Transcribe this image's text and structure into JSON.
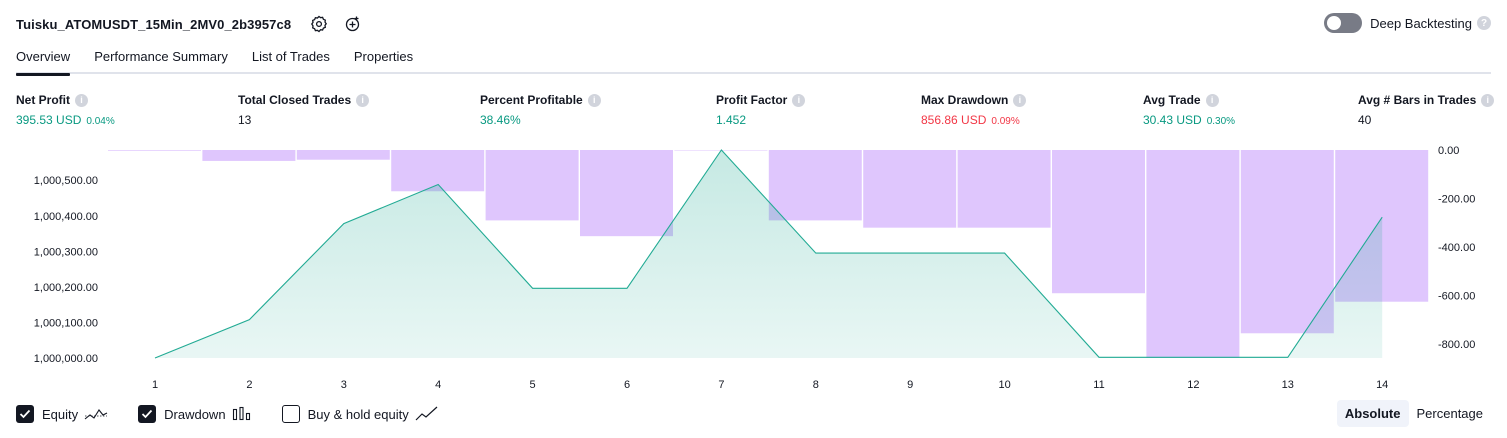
{
  "header": {
    "strategy_name": "Tuisku_ATOMUSDT_15Min_2MV0_2b3957c8",
    "settings_icon": "gear-icon",
    "source_icon": "add-source-icon"
  },
  "deep_backtesting": {
    "label": "Deep Backtesting",
    "enabled": false
  },
  "tabs": [
    {
      "label": "Overview",
      "active": true
    },
    {
      "label": "Performance Summary",
      "active": false
    },
    {
      "label": "List of Trades",
      "active": false
    },
    {
      "label": "Properties",
      "active": false
    }
  ],
  "metrics": [
    {
      "label": "Net Profit",
      "value": "395.53 USD",
      "pct": "0.04%",
      "color": "green"
    },
    {
      "label": "Total Closed Trades",
      "value": "13",
      "pct": "",
      "color": "black"
    },
    {
      "label": "Percent Profitable",
      "value": "38.46%",
      "pct": "",
      "color": "green"
    },
    {
      "label": "Profit Factor",
      "value": "1.452",
      "pct": "",
      "color": "green"
    },
    {
      "label": "Max Drawdown",
      "value": "856.86 USD",
      "pct": "0.09%",
      "color": "red"
    },
    {
      "label": "Avg Trade",
      "value": "30.43 USD",
      "pct": "0.30%",
      "color": "green"
    },
    {
      "label": "Avg # Bars in Trades",
      "value": "40",
      "pct": "",
      "color": "black"
    }
  ],
  "chart_data": {
    "type": "line",
    "x": [
      1,
      2,
      3,
      4,
      5,
      6,
      7,
      8,
      9,
      10,
      11,
      12,
      13,
      14
    ],
    "x_ticks": [
      "1",
      "2",
      "3",
      "4",
      "5",
      "6",
      "7",
      "8",
      "9",
      "10",
      "11",
      "12",
      "13",
      "14"
    ],
    "left_axis": {
      "ticks": [
        "1,000,000.00",
        "1,000,100.00",
        "1,000,200.00",
        "1,000,300.00",
        "1,000,400.00",
        "1,000,500.00"
      ],
      "tick_values": [
        1000000,
        1000100,
        1000200,
        1000300,
        1000400,
        1000500
      ],
      "ylim": [
        1000000,
        1000585
      ]
    },
    "right_axis": {
      "ticks": [
        "0.00",
        "-200.00",
        "-400.00",
        "-600.00",
        "-800.00"
      ],
      "tick_values": [
        0,
        -200,
        -400,
        -600,
        -800
      ],
      "ylim": [
        -856.86,
        0
      ]
    },
    "series": [
      {
        "name": "Equity",
        "axis": "left",
        "style": "area-line",
        "color": "#22ab94",
        "values": [
          1000000,
          1000108,
          1000378,
          1000488,
          1000196,
          1000196,
          1000585,
          1000295,
          1000295,
          1000295,
          1000002,
          1000002,
          1000002,
          1000396
        ]
      },
      {
        "name": "Drawdown",
        "axis": "right",
        "style": "bars",
        "color": "#c597fc",
        "values": [
          -3,
          -45,
          -40,
          -170,
          -290,
          -355,
          0,
          -290,
          -320,
          -320,
          -590,
          -856.86,
          -755,
          -625
        ]
      }
    ],
    "legend": [
      {
        "label": "Equity",
        "checked": true,
        "icon": "equity-line-icon"
      },
      {
        "label": "Drawdown",
        "checked": true,
        "icon": "drawdown-bars-icon"
      },
      {
        "label": "Buy & hold equity",
        "checked": false,
        "icon": "buy-hold-line-icon"
      }
    ]
  },
  "view_mode": {
    "options": [
      "Absolute",
      "Percentage"
    ],
    "selected": "Absolute"
  }
}
